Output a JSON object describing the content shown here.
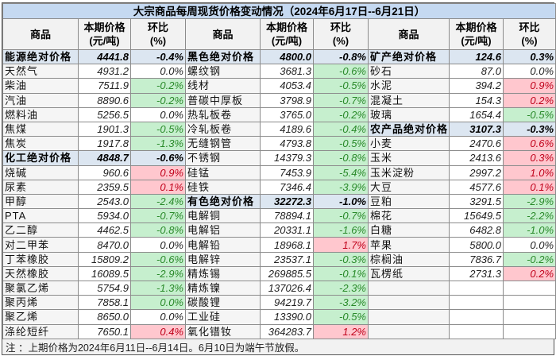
{
  "title": "大宗商品每周现货价格变动情况（2024年6月17日--6月21日）",
  "headers": {
    "name": "商品",
    "price": "本期价格",
    "price_unit": "(元/吨)",
    "pct": "环比",
    "pct_unit": "(%)"
  },
  "columns": [
    [
      {
        "name": "能源绝对价格",
        "price": "4441.8",
        "pct": "-0.4%",
        "head": true
      },
      {
        "name": "天然气",
        "price": "4931.2",
        "pct": "0.0%",
        "tone": ""
      },
      {
        "name": "柴油",
        "price": "7511.9",
        "pct": "-0.2%",
        "tone": "g"
      },
      {
        "name": "汽油",
        "price": "8890.6",
        "pct": "-0.2%",
        "tone": "g"
      },
      {
        "name": "燃料油",
        "price": "5256.5",
        "pct": "0.0%",
        "tone": ""
      },
      {
        "name": "焦煤",
        "price": "1901.3",
        "pct": "-0.5%",
        "tone": "g"
      },
      {
        "name": "焦炭",
        "price": "1917.8",
        "pct": "-1.3%",
        "tone": "g"
      },
      {
        "name": "化工绝对价格",
        "price": "4848.7",
        "pct": "-0.6%",
        "head": true
      },
      {
        "name": "烧碱",
        "price": "960.6",
        "pct": "0.9%",
        "tone": "r"
      },
      {
        "name": "尿素",
        "price": "2359.5",
        "pct": "0.1%",
        "tone": "r"
      },
      {
        "name": "甲醇",
        "price": "2543.0",
        "pct": "-2.4%",
        "tone": "g"
      },
      {
        "name": "PTA",
        "price": "5934.0",
        "pct": "-0.7%",
        "tone": "g"
      },
      {
        "name": "乙二醇",
        "price": "4462.5",
        "pct": "-0.8%",
        "tone": "g"
      },
      {
        "name": "对二甲苯",
        "price": "8470.0",
        "pct": "0.0%",
        "tone": ""
      },
      {
        "name": "丁苯橡胶",
        "price": "15809.2",
        "pct": "-0.6%",
        "tone": "g"
      },
      {
        "name": "天然橡胶",
        "price": "16089.5",
        "pct": "-2.9%",
        "tone": "g"
      },
      {
        "name": "聚氯乙烯",
        "price": "5754.9",
        "pct": "-1.3%",
        "tone": "g"
      },
      {
        "name": "聚丙烯",
        "price": "7858.1",
        "pct": "0.0%",
        "tone": "g"
      },
      {
        "name": "聚乙烯",
        "price": "8650.0",
        "pct": "0.0%",
        "tone": ""
      },
      {
        "name": "涤纶短纤",
        "price": "7650.1",
        "pct": "0.4%",
        "tone": "r"
      }
    ],
    [
      {
        "name": "黑色绝对价格",
        "price": "4800.0",
        "pct": "-0.8%",
        "head": true
      },
      {
        "name": "螺纹钢",
        "price": "3681.3",
        "pct": "-0.6%",
        "tone": "g"
      },
      {
        "name": "线材",
        "price": "4053.4",
        "pct": "-0.5%",
        "tone": "g"
      },
      {
        "name": "普碳中厚板",
        "price": "3798.9",
        "pct": "-0.7%",
        "tone": "g"
      },
      {
        "name": "热轧板卷",
        "price": "3765.0",
        "pct": "-0.2%",
        "tone": "g"
      },
      {
        "name": "冷轧板卷",
        "price": "4189.6",
        "pct": "-0.4%",
        "tone": "g"
      },
      {
        "name": "无缝钢管",
        "price": "4793.8",
        "pct": "-0.5%",
        "tone": "g"
      },
      {
        "name": "不锈钢",
        "price": "14379.3",
        "pct": "-0.8%",
        "tone": "g"
      },
      {
        "name": "硅锰",
        "price": "7453.9",
        "pct": "-5.4%",
        "tone": "g"
      },
      {
        "name": "硅铁",
        "price": "7346.4",
        "pct": "-3.9%",
        "tone": "g"
      },
      {
        "name": "有色绝对价格",
        "price": "32272.3",
        "pct": "-1.0%",
        "head": true
      },
      {
        "name": "电解铜",
        "price": "78894.1",
        "pct": "-0.7%",
        "tone": "g"
      },
      {
        "name": "电解铝",
        "price": "20331.1",
        "pct": "-1.6%",
        "tone": "g"
      },
      {
        "name": "电解铅",
        "price": "18968.1",
        "pct": "1.7%",
        "tone": "r"
      },
      {
        "name": "电解锌",
        "price": "23537.1",
        "pct": "-0.3%",
        "tone": "g"
      },
      {
        "name": "精炼锡",
        "price": "269885.5",
        "pct": "-0.1%",
        "tone": "g"
      },
      {
        "name": "精炼镍",
        "price": "137026.4",
        "pct": "-2.3%",
        "tone": "g"
      },
      {
        "name": "碳酸锂",
        "price": "94219.7",
        "pct": "-3.2%",
        "tone": "g"
      },
      {
        "name": "工业硅",
        "price": "13390.0",
        "pct": "-0.5%",
        "tone": "g"
      },
      {
        "name": "氧化镨钕",
        "price": "364283.7",
        "pct": "1.2%",
        "tone": "r"
      }
    ],
    [
      {
        "name": "矿产绝对价格",
        "price": "124.6",
        "pct": "0.3%",
        "head": true
      },
      {
        "name": "砂石",
        "price": "87.0",
        "pct": "0.0%",
        "tone": ""
      },
      {
        "name": "水泥",
        "price": "394.2",
        "pct": "0.9%",
        "tone": "r"
      },
      {
        "name": "混凝土",
        "price": "154.3",
        "pct": "0.2%",
        "tone": "r"
      },
      {
        "name": "玻璃",
        "price": "1654.4",
        "pct": "-0.5%",
        "tone": "g"
      },
      {
        "name": "农产品绝对价格",
        "price": "3107.3",
        "pct": "-0.3%",
        "head": true
      },
      {
        "name": "小麦",
        "price": "2470.6",
        "pct": "0.6%",
        "tone": "r"
      },
      {
        "name": "玉米",
        "price": "2413.6",
        "pct": "0.3%",
        "tone": "r"
      },
      {
        "name": "玉米淀粉",
        "price": "2997.2",
        "pct": "1.0%",
        "tone": "r"
      },
      {
        "name": "大豆",
        "price": "4577.6",
        "pct": "0.1%",
        "tone": "r"
      },
      {
        "name": "豆粕",
        "price": "3291.5",
        "pct": "-2.9%",
        "tone": "g"
      },
      {
        "name": "棉花",
        "price": "15649.5",
        "pct": "-2.2%",
        "tone": "g"
      },
      {
        "name": "白糖",
        "price": "6482.8",
        "pct": "-1.0%",
        "tone": "g"
      },
      {
        "name": "苹果",
        "price": "5800.0",
        "pct": "0.0%",
        "tone": ""
      },
      {
        "name": "棕榈油",
        "price": "7836.7",
        "pct": "-0.2%",
        "tone": "g"
      },
      {
        "name": "瓦楞纸",
        "price": "2731.3",
        "pct": "0.2%",
        "tone": "r"
      }
    ]
  ],
  "note": "注 ：上期价格为2024年6月11日--6月14日。6月10日为端午节放假。",
  "colors": {
    "title_bg": "#c5d9f1",
    "category_bg": "#dce6f1",
    "down_bg": "#c6efce",
    "down_text": "#2a8a2a",
    "up_bg": "#ffc7ce",
    "up_text": "#c0001a"
  }
}
